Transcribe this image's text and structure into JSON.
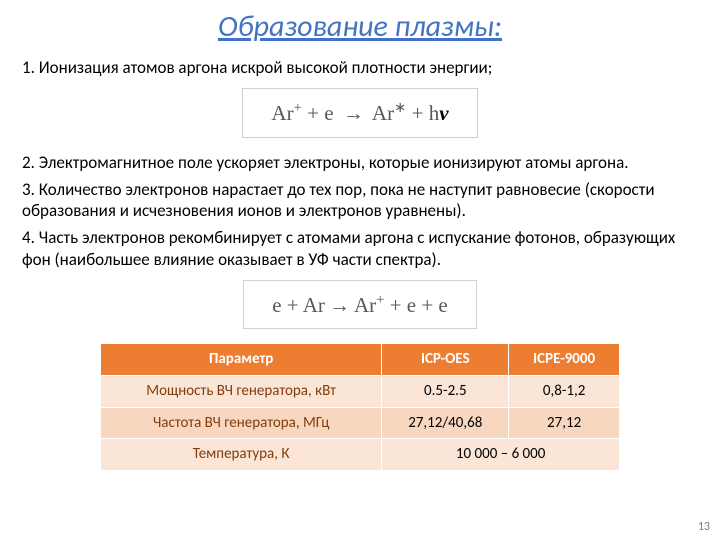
{
  "title": "Образование плазмы:",
  "paragraphs": {
    "p1": "1. Ионизация атомов аргона искрой высокой плотности энергии;",
    "p2": "2. Электромагнитное поле ускоряет электроны, которые ионизируют атомы аргона.",
    "p3": "3. Количество электронов нарастает до тех пор, пока не наступит равновесие (скорости образования и исчезновения ионов и электронов уравнены).",
    "p4": "4. Часть электронов рекомбинирует с атомами аргона с испускание фотонов, образующих фон (наибольшее влияние оказывает в УФ части спектра)."
  },
  "equations": {
    "eq1": {
      "lhs_a": "Ar",
      "lhs_a_sup": "+",
      "plus1": " + ",
      "lhs_b": "e",
      "arrow": "→",
      "rhs_a": "Ar",
      "rhs_a_sup": "∗",
      "plus2": " + ",
      "rhs_b": "h",
      "rhs_c": "ν"
    },
    "eq2": {
      "parts": [
        "e",
        " + ",
        "Ar",
        " → ",
        "Ar",
        "+",
        " + ",
        "e",
        " + ",
        "e"
      ]
    }
  },
  "table": {
    "columns": [
      "Параметр",
      "ICP-OES",
      "ICPE-9000"
    ],
    "rows": [
      {
        "cells": [
          "Мощность ВЧ генератора, кВт",
          "0.5-2.5",
          "0,8-1,2"
        ],
        "merged": false
      },
      {
        "cells": [
          "Частота ВЧ генератора, МГц",
          "27,12/40,68",
          "27,12"
        ],
        "merged": false
      },
      {
        "cells": [
          "Температура, К",
          "10 000 – 6 000"
        ],
        "merged": true
      }
    ],
    "header_bg": "#ed7d31",
    "header_fg": "#ffffff",
    "row_odd_bg": "#fbe5d6",
    "row_even_bg": "#f8d7c1",
    "first_col_fg": "#833c0c"
  },
  "page_number": "13"
}
